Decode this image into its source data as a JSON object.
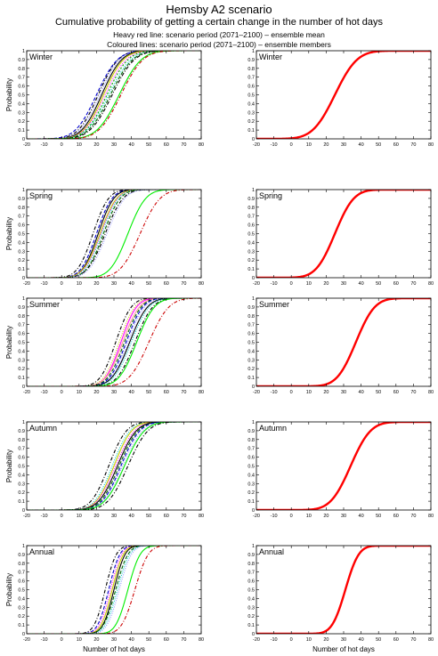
{
  "title": "Hemsby A2 scenario",
  "subtitle": "Cumulative probability of getting a certain change in the number of hot days",
  "line1": "Heavy red line: scenario period (2071–2100) – ensemble mean",
  "line2": "Coloured lines: scenario period (2071–2100) – ensemble members",
  "chart_data": [
    {
      "type": "line",
      "panel": "Winter",
      "column": "members",
      "xlim": [
        -20,
        80
      ],
      "ylim": [
        0,
        1
      ],
      "xticks": [
        -20,
        -10,
        0,
        10,
        20,
        30,
        40,
        50,
        60,
        70,
        80
      ],
      "yticks": [
        0,
        0.1,
        0.2,
        0.3,
        0.4,
        0.5,
        0.6,
        0.7,
        0.8,
        0.9,
        1
      ],
      "ylabel": "Probability",
      "xlabel": "",
      "series": [
        {
          "mu": 21,
          "sd": 9,
          "color": "#000000",
          "dash": "4,2,1,2"
        },
        {
          "mu": 20,
          "sd": 9.5,
          "color": "#0000cc",
          "dash": "4,2"
        },
        {
          "mu": 22,
          "sd": 9,
          "color": "#9999ff",
          "dash": "1,1.5"
        },
        {
          "mu": 23,
          "sd": 9,
          "color": "#000000",
          "dash": ""
        },
        {
          "mu": 24,
          "sd": 9,
          "color": "#cccc00",
          "dash": ""
        },
        {
          "mu": 25,
          "sd": 9.5,
          "color": "#ff00ff",
          "dash": "1,1.5"
        },
        {
          "mu": 26,
          "sd": 9.5,
          "color": "#00aa00",
          "dash": "2,2"
        },
        {
          "mu": 27,
          "sd": 10,
          "color": "#00cccc",
          "dash": "1,1.5"
        },
        {
          "mu": 28,
          "sd": 10,
          "color": "#006600",
          "dash": "4,2"
        },
        {
          "mu": 29,
          "sd": 10,
          "color": "#000000",
          "dash": "4,2,1,2"
        },
        {
          "mu": 33,
          "sd": 10,
          "color": "#00ee00",
          "dash": ""
        },
        {
          "mu": 34,
          "sd": 10,
          "color": "#cc0000",
          "dash": "4,2,1,2"
        }
      ]
    },
    {
      "type": "line",
      "panel": "Winter",
      "column": "mean",
      "xlim": [
        -20,
        80
      ],
      "ylim": [
        0,
        1
      ],
      "xticks": [
        -20,
        -10,
        0,
        10,
        20,
        30,
        40,
        50,
        60,
        70,
        80
      ],
      "yticks": [
        0,
        0.1,
        0.2,
        0.3,
        0.4,
        0.5,
        0.6,
        0.7,
        0.8,
        0.9,
        1
      ],
      "xlabel": "",
      "ylabel": "",
      "series": [
        {
          "mu": 25,
          "sd": 10,
          "color": "#ff0000",
          "dash": "",
          "width": 2.4
        }
      ]
    },
    {
      "type": "line",
      "panel": "Spring",
      "column": "members",
      "xlim": [
        -20,
        80
      ],
      "ylim": [
        0,
        1
      ],
      "xticks": [
        -20,
        -10,
        0,
        10,
        20,
        30,
        40,
        50,
        60,
        70,
        80
      ],
      "yticks": [
        0,
        0.1,
        0.2,
        0.3,
        0.4,
        0.5,
        0.6,
        0.7,
        0.8,
        0.9,
        1
      ],
      "ylabel": "Probability",
      "xlabel": "",
      "series": [
        {
          "mu": 18,
          "sd": 7,
          "color": "#000000",
          "dash": "4,2,1,2"
        },
        {
          "mu": 20,
          "sd": 7,
          "color": "#0000cc",
          "dash": "4,2"
        },
        {
          "mu": 21,
          "sd": 7,
          "color": "#000000",
          "dash": ""
        },
        {
          "mu": 22,
          "sd": 7.5,
          "color": "#cccc00",
          "dash": ""
        },
        {
          "mu": 22.5,
          "sd": 7.5,
          "color": "#ff00ff",
          "dash": "1,1.5"
        },
        {
          "mu": 23,
          "sd": 7.5,
          "color": "#00cccc",
          "dash": "1,1.5"
        },
        {
          "mu": 24,
          "sd": 7.5,
          "color": "#006600",
          "dash": "4,2"
        },
        {
          "mu": 25,
          "sd": 8,
          "color": "#000000",
          "dash": "4,2,1,2"
        },
        {
          "mu": 26,
          "sd": 8,
          "color": "#9999ff",
          "dash": "1,1.5"
        },
        {
          "mu": 38,
          "sd": 8,
          "color": "#00ee00",
          "dash": ""
        },
        {
          "mu": 45,
          "sd": 9,
          "color": "#cc0000",
          "dash": "4,2,1,2"
        }
      ]
    },
    {
      "type": "line",
      "panel": "Spring",
      "column": "mean",
      "xlim": [
        -20,
        80
      ],
      "ylim": [
        0,
        1
      ],
      "xticks": [
        -20,
        -10,
        0,
        10,
        20,
        30,
        40,
        50,
        60,
        70,
        80
      ],
      "yticks": [
        0,
        0.1,
        0.2,
        0.3,
        0.4,
        0.5,
        0.6,
        0.7,
        0.8,
        0.9,
        1
      ],
      "xlabel": "",
      "ylabel": "",
      "series": [
        {
          "mu": 25,
          "sd": 8.5,
          "color": "#ff0000",
          "dash": "",
          "width": 2.4
        }
      ]
    },
    {
      "type": "line",
      "panel": "Summer",
      "column": "members",
      "xlim": [
        -20,
        80
      ],
      "ylim": [
        0,
        1
      ],
      "xticks": [
        -20,
        -10,
        0,
        10,
        20,
        30,
        40,
        50,
        60,
        70,
        80
      ],
      "yticks": [
        0,
        0.1,
        0.2,
        0.3,
        0.4,
        0.5,
        0.6,
        0.7,
        0.8,
        0.9,
        1
      ],
      "ylabel": "Probability",
      "xlabel": "",
      "series": [
        {
          "mu": 31,
          "sd": 7,
          "color": "#000000",
          "dash": "4,2,1,2"
        },
        {
          "mu": 33,
          "sd": 7,
          "color": "#cccc00",
          "dash": "1,1.5"
        },
        {
          "mu": 34,
          "sd": 7,
          "color": "#ff00ff",
          "dash": ""
        },
        {
          "mu": 35,
          "sd": 7.5,
          "color": "#ff9999",
          "dash": ""
        },
        {
          "mu": 36,
          "sd": 7.5,
          "color": "#006600",
          "dash": "4,2"
        },
        {
          "mu": 37,
          "sd": 7.5,
          "color": "#0000cc",
          "dash": "4,2"
        },
        {
          "mu": 38,
          "sd": 7.5,
          "color": "#9999ff",
          "dash": "1,1.5"
        },
        {
          "mu": 39,
          "sd": 8,
          "color": "#000000",
          "dash": ""
        },
        {
          "mu": 40,
          "sd": 8,
          "color": "#00cccc",
          "dash": "1,1.5"
        },
        {
          "mu": 42,
          "sd": 8,
          "color": "#000000",
          "dash": "4,2,1,2"
        },
        {
          "mu": 43,
          "sd": 8,
          "color": "#00ee00",
          "dash": ""
        },
        {
          "mu": 50,
          "sd": 9,
          "color": "#cc0000",
          "dash": "4,2,1,2"
        }
      ]
    },
    {
      "type": "line",
      "panel": "Summer",
      "column": "mean",
      "xlim": [
        -20,
        80
      ],
      "ylim": [
        0,
        1
      ],
      "xticks": [
        -20,
        -10,
        0,
        10,
        20,
        30,
        40,
        50,
        60,
        70,
        80
      ],
      "yticks": [
        0,
        0.1,
        0.2,
        0.3,
        0.4,
        0.5,
        0.6,
        0.7,
        0.8,
        0.9,
        1
      ],
      "xlabel": "",
      "ylabel": "",
      "series": [
        {
          "mu": 37,
          "sd": 8.5,
          "color": "#ff0000",
          "dash": "",
          "width": 2.4
        }
      ]
    },
    {
      "type": "line",
      "panel": "Autumn",
      "column": "members",
      "xlim": [
        -20,
        80
      ],
      "ylim": [
        0,
        1
      ],
      "xticks": [
        -20,
        -10,
        0,
        10,
        20,
        30,
        40,
        50,
        60,
        70,
        80
      ],
      "yticks": [
        0,
        0.1,
        0.2,
        0.3,
        0.4,
        0.5,
        0.6,
        0.7,
        0.8,
        0.9,
        1
      ],
      "ylabel": "Probability",
      "xlabel": "",
      "series": [
        {
          "mu": 27,
          "sd": 8,
          "color": "#000000",
          "dash": "4,2,1,2"
        },
        {
          "mu": 29,
          "sd": 8,
          "color": "#00cccc",
          "dash": "1,1.5"
        },
        {
          "mu": 30,
          "sd": 8,
          "color": "#cccc00",
          "dash": ""
        },
        {
          "mu": 31,
          "sd": 8.5,
          "color": "#ff00ff",
          "dash": "1,1.5"
        },
        {
          "mu": 32,
          "sd": 8.5,
          "color": "#000000",
          "dash": ""
        },
        {
          "mu": 33,
          "sd": 8.5,
          "color": "#006600",
          "dash": "4,2"
        },
        {
          "mu": 34,
          "sd": 8.5,
          "color": "#0000cc",
          "dash": "4,2"
        },
        {
          "mu": 35,
          "sd": 9,
          "color": "#9999ff",
          "dash": "1,1.5"
        },
        {
          "mu": 36,
          "sd": 9,
          "color": "#00ee00",
          "dash": ""
        },
        {
          "mu": 38,
          "sd": 9,
          "color": "#000000",
          "dash": "4,2,1,2"
        }
      ]
    },
    {
      "type": "line",
      "panel": "Autumn",
      "column": "mean",
      "xlim": [
        -20,
        80
      ],
      "ylim": [
        0,
        1
      ],
      "xticks": [
        -20,
        -10,
        0,
        10,
        20,
        30,
        40,
        50,
        60,
        70,
        80
      ],
      "yticks": [
        0,
        0.1,
        0.2,
        0.3,
        0.4,
        0.5,
        0.6,
        0.7,
        0.8,
        0.9,
        1
      ],
      "xlabel": "",
      "ylabel": "",
      "series": [
        {
          "mu": 34,
          "sd": 9,
          "color": "#ff0000",
          "dash": "",
          "width": 2.4
        }
      ]
    },
    {
      "type": "line",
      "panel": "Annual",
      "column": "members",
      "xlim": [
        -20,
        80
      ],
      "ylim": [
        0,
        1
      ],
      "xticks": [
        -20,
        -10,
        0,
        10,
        20,
        30,
        40,
        50,
        60,
        70,
        80
      ],
      "yticks": [
        0,
        0.1,
        0.2,
        0.3,
        0.4,
        0.5,
        0.6,
        0.7,
        0.8,
        0.9,
        1
      ],
      "ylabel": "Probability",
      "xlabel": "Number of hot days",
      "series": [
        {
          "mu": 25,
          "sd": 5,
          "color": "#000000",
          "dash": "4,2,1,2"
        },
        {
          "mu": 27,
          "sd": 5,
          "color": "#0000cc",
          "dash": "4,2"
        },
        {
          "mu": 28,
          "sd": 5,
          "color": "#ff00ff",
          "dash": "1,1.5"
        },
        {
          "mu": 29,
          "sd": 5,
          "color": "#cccc00",
          "dash": ""
        },
        {
          "mu": 30,
          "sd": 5,
          "color": "#000000",
          "dash": ""
        },
        {
          "mu": 31,
          "sd": 5.5,
          "color": "#006600",
          "dash": "4,2"
        },
        {
          "mu": 32,
          "sd": 5.5,
          "color": "#00cccc",
          "dash": "1,1.5"
        },
        {
          "mu": 33,
          "sd": 5.5,
          "color": "#9999ff",
          "dash": "1,1.5"
        },
        {
          "mu": 38,
          "sd": 5.5,
          "color": "#00ee00",
          "dash": ""
        },
        {
          "mu": 42,
          "sd": 6,
          "color": "#cc0000",
          "dash": "4,2,1,2"
        }
      ]
    },
    {
      "type": "line",
      "panel": "Annual",
      "column": "mean",
      "xlim": [
        -20,
        80
      ],
      "ylim": [
        0,
        1
      ],
      "xticks": [
        -20,
        -10,
        0,
        10,
        20,
        30,
        40,
        50,
        60,
        70,
        80
      ],
      "yticks": [
        0,
        0.1,
        0.2,
        0.3,
        0.4,
        0.5,
        0.6,
        0.7,
        0.8,
        0.9,
        1
      ],
      "xlabel": "Number of hot days",
      "ylabel": "",
      "series": [
        {
          "mu": 31,
          "sd": 6,
          "color": "#ff0000",
          "dash": "",
          "width": 2.4
        }
      ]
    }
  ]
}
